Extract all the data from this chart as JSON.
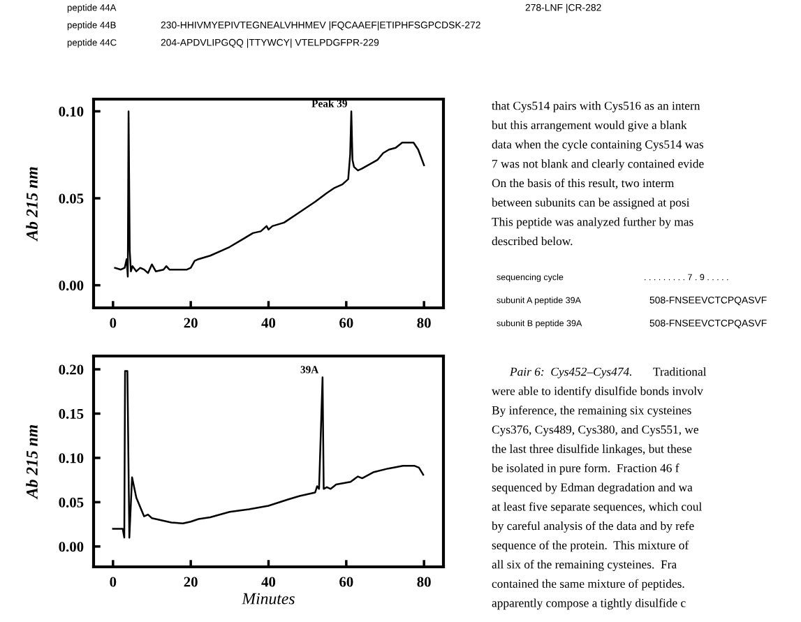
{
  "chart_data": [
    {
      "type": "line",
      "ylabel": "Ab 215 nm",
      "color": "#000000",
      "x": [
        0.5,
        2,
        3,
        3.5,
        3.8,
        4.0,
        4.3,
        4.6,
        5,
        6,
        7,
        8,
        9,
        10,
        11,
        13,
        13.7,
        14.5,
        19,
        20,
        21,
        22,
        25,
        28,
        30,
        33,
        36,
        38,
        39.5,
        40,
        41,
        44,
        48,
        52,
        55,
        57,
        59,
        60.5,
        61,
        61.3,
        61.6,
        62,
        63,
        64,
        66.4,
        68,
        69.5,
        71,
        72.7,
        74.4,
        77.3,
        78.5,
        80
      ],
      "values": [
        0.01,
        0.009,
        0.01,
        0.015,
        0.005,
        0.1,
        0.02,
        0.008,
        0.011,
        0.008,
        0.01,
        0.009,
        0.007,
        0.012,
        0.008,
        0.009,
        0.011,
        0.009,
        0.009,
        0.01,
        0.014,
        0.015,
        0.017,
        0.02,
        0.022,
        0.026,
        0.03,
        0.031,
        0.034,
        0.032,
        0.034,
        0.036,
        0.042,
        0.048,
        0.053,
        0.056,
        0.058,
        0.061,
        0.075,
        0.1,
        0.072,
        0.068,
        0.066,
        0.067,
        0.07,
        0.072,
        0.076,
        0.078,
        0.079,
        0.082,
        0.082,
        0.078,
        0.069
      ],
      "xlim": [
        -5,
        85
      ],
      "xticks": [
        0,
        20,
        40,
        60,
        80
      ],
      "ylim": [
        -0.013,
        0.107
      ],
      "yticks": [
        {
          "value": 0,
          "label": "0.00"
        },
        {
          "value": 0.05,
          "label": "0.05"
        },
        {
          "value": 0.1,
          "label": "0.10"
        }
      ],
      "annotations": [
        {
          "text": "Peak 39",
          "x": 61.3,
          "y": 0.1
        }
      ]
    },
    {
      "type": "line",
      "ylabel": "Ab 215 nm",
      "xlabel": "Minutes",
      "color": "#000000",
      "x": [
        0,
        2.5,
        2.9,
        3.1,
        3.7,
        4.2,
        4.9,
        6,
        8,
        9,
        10,
        13,
        15,
        18,
        20,
        22,
        25,
        30,
        35,
        40,
        45,
        48,
        50,
        52,
        52.5,
        53,
        53.9,
        54.2,
        55,
        56,
        57.4,
        61.1,
        63,
        64.1,
        67.1,
        70.8,
        74.6,
        77.6,
        78.7,
        79.8
      ],
      "values": [
        0.02,
        0.02,
        0.01,
        0.198,
        0.198,
        0.01,
        0.078,
        0.055,
        0.034,
        0.036,
        0.032,
        0.029,
        0.027,
        0.026,
        0.028,
        0.031,
        0.033,
        0.039,
        0.042,
        0.046,
        0.053,
        0.057,
        0.059,
        0.061,
        0.068,
        0.065,
        0.191,
        0.065,
        0.067,
        0.065,
        0.07,
        0.073,
        0.079,
        0.077,
        0.084,
        0.088,
        0.091,
        0.091,
        0.089,
        0.081
      ],
      "xlim": [
        -5,
        85
      ],
      "xticks": [
        0,
        20,
        40,
        60,
        80
      ],
      "ylim": [
        -0.023,
        0.215
      ],
      "yticks": [
        {
          "value": 0,
          "label": "0.00"
        },
        {
          "value": 0.05,
          "label": "0.05"
        },
        {
          "value": 0.1,
          "label": "0.10"
        },
        {
          "value": 0.15,
          "label": "0.15"
        },
        {
          "value": 0.2,
          "label": "0.20"
        }
      ],
      "annotations": [
        {
          "text": "39A",
          "x": 53.9,
          "y": 0.191
        }
      ]
    },
    {
      "type": "other",
      "annotations": [
        "peptide 44A",
        "peptide 44B",
        "peptide 44C",
        "278-LNF |CR-282",
        "230-HHIVMYEPIVTEGNEALVHHMEV |FQCAAEF|ETIPHFSGPCDSK-272",
        "204-APDVLIPGQQ |TTYWCY| VTELPDGFPR-229",
        "that Cys514 pairs with Cys516 as an intern",
        "but this arrangement would give a blank",
        "data when the cycle containing Cys514 was",
        "7 was not blank and clearly contained evide",
        "On the basis of this result, two interm",
        "between subunits can be assigned at posi",
        "This peptide was analyzed further by mas",
        "described below.",
        "sequencing cycle",
        ". . . . . . . . . 7 . 9 . . . . .",
        "subunit A peptide 39A",
        "508-FNSEEVCTCPQASVF",
        "subunit B peptide 39A",
        "508-FNSEEVCTCPQASVF",
        "Pair 6:  Cys452–Cys474.",
        "Traditional",
        "were able to identify disulfide bonds involv",
        "By inference, the remaining six cysteines",
        "Cys376, Cys489, Cys380, and Cys551, we",
        "the last three disulfide linkages, but these",
        "be isolated in pure form.  Fraction 46 f",
        "sequenced by Edman degradation and wa",
        "at least five separate sequences, which coul",
        "by careful analysis of the data and by refe",
        "sequence of the protein.  This mixture of",
        "all six of the remaining cysteines.  Fra",
        "contained the same mixture of peptides.",
        "apparently compose a tightly disulfide c"
      ]
    }
  ]
}
